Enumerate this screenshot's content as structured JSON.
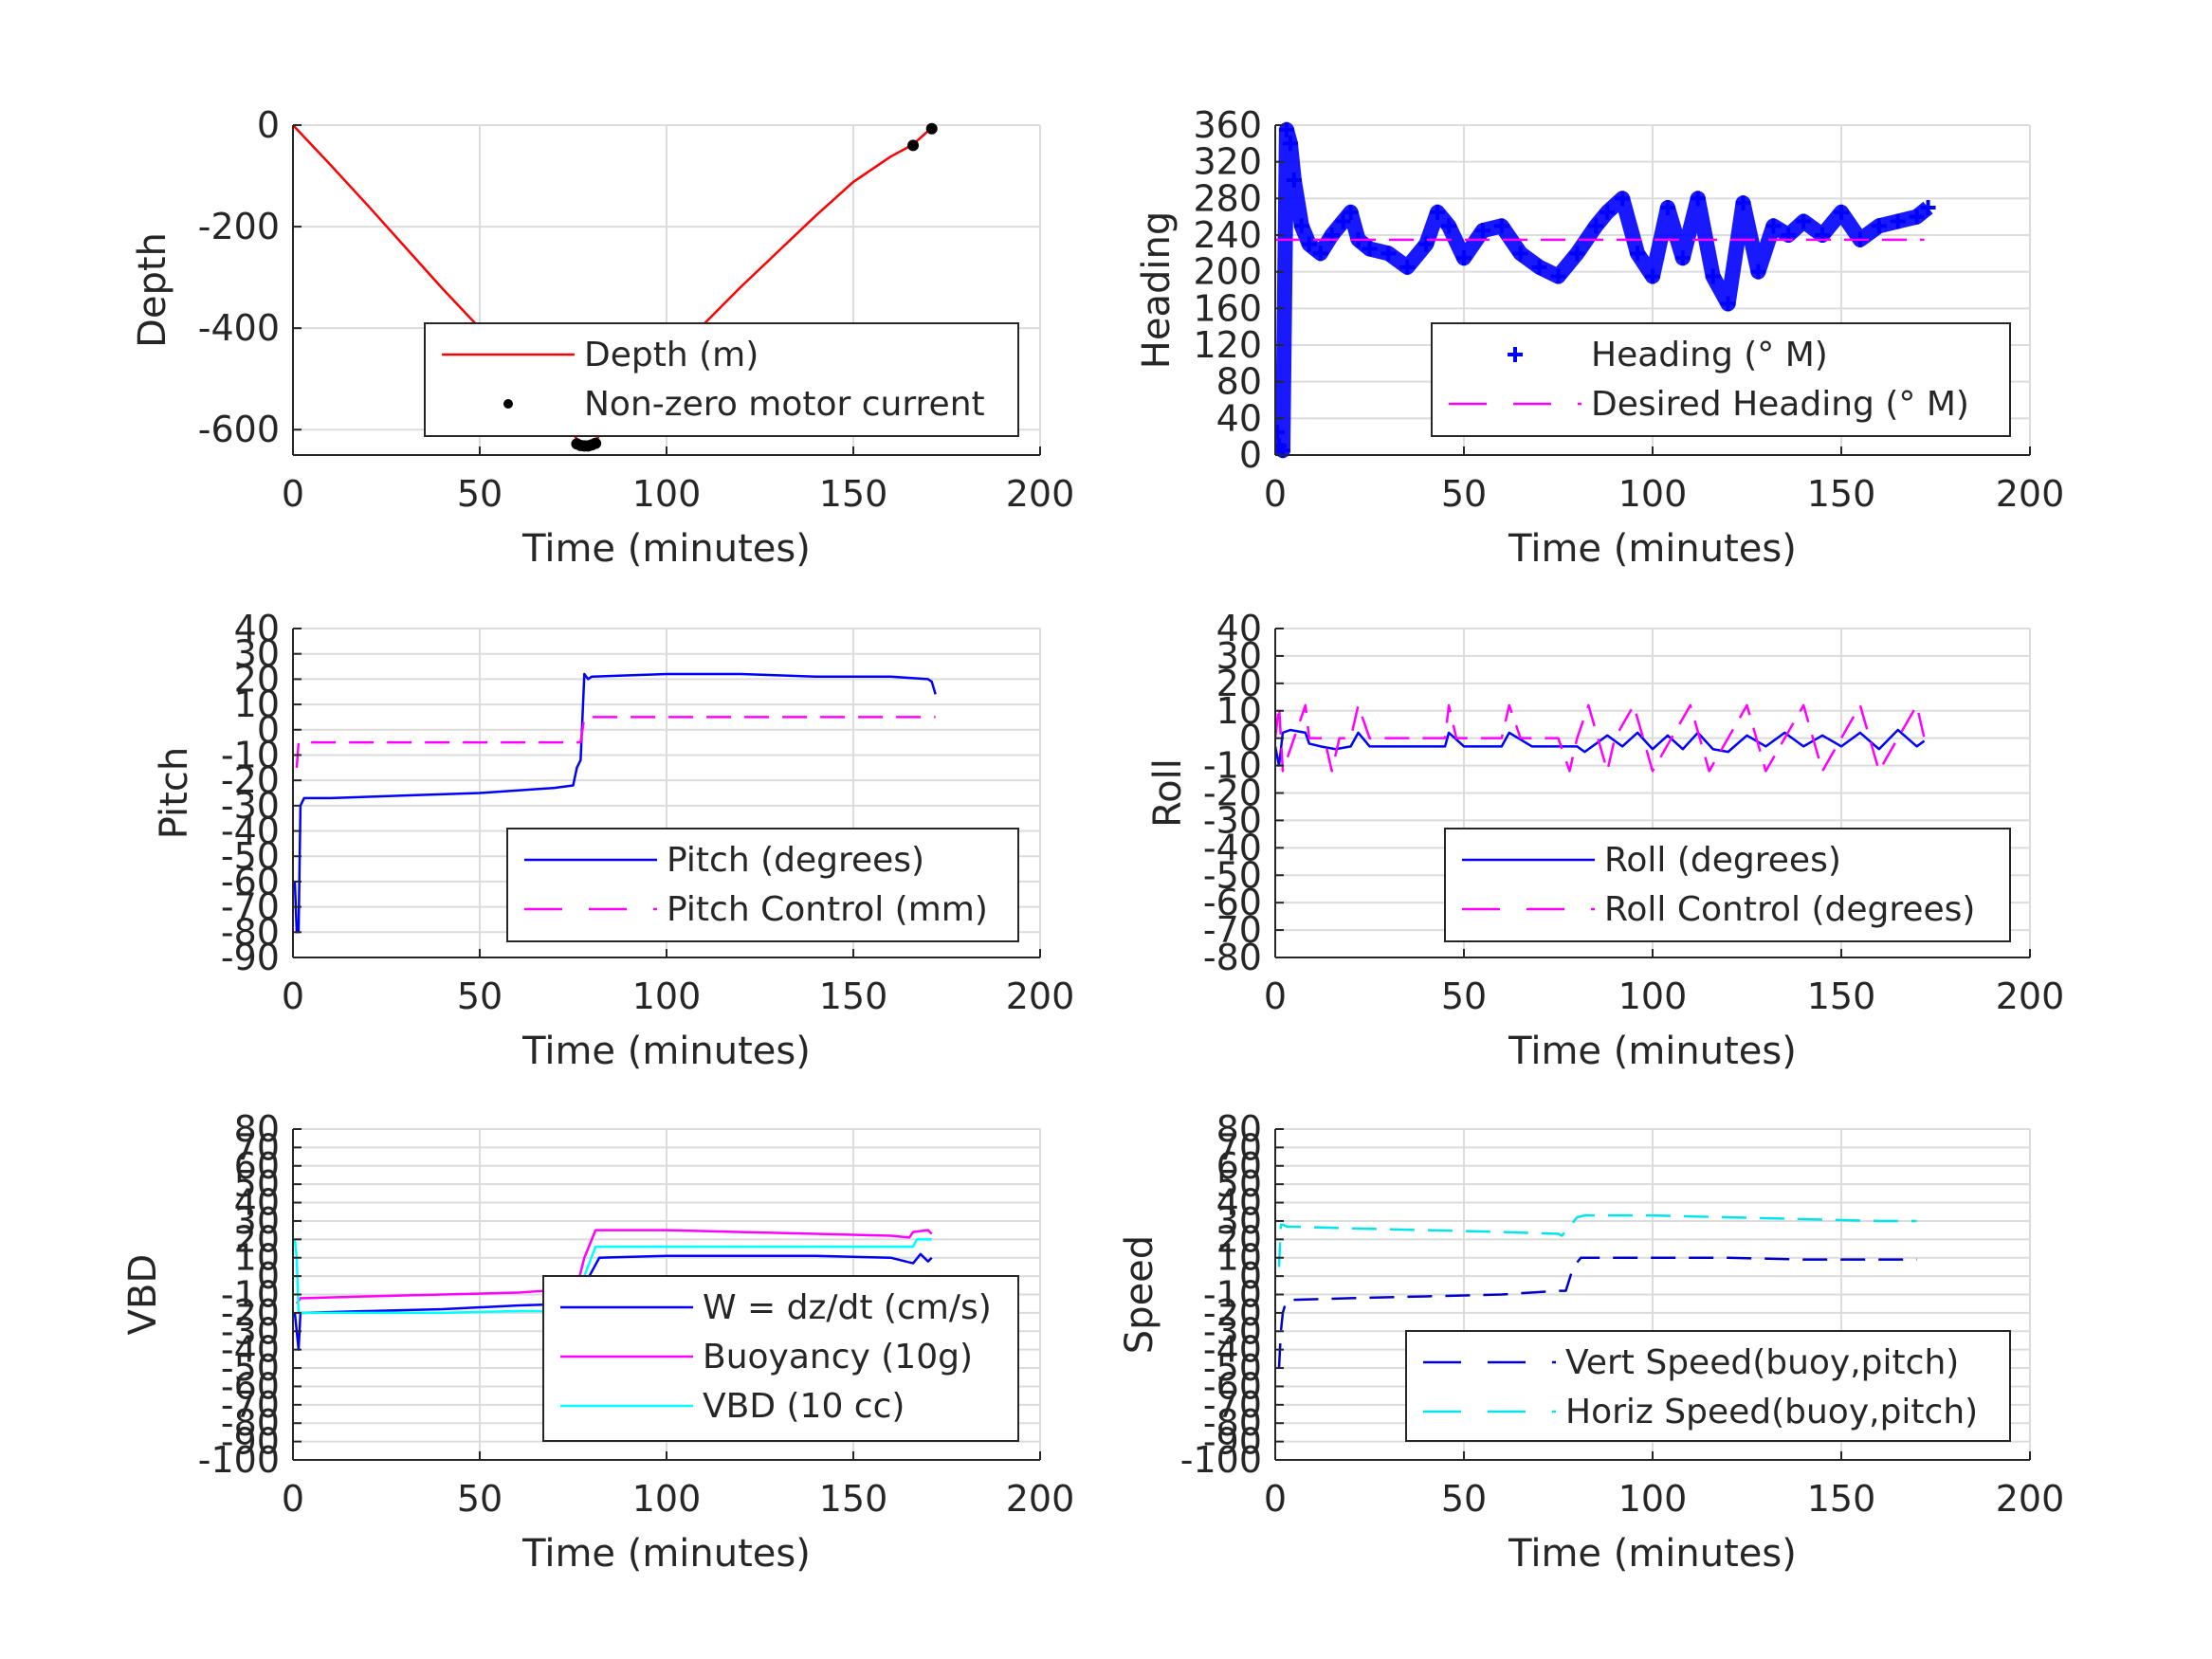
{
  "chart_data": [
    {
      "type": "line",
      "xlabel": "Time (minutes)",
      "ylabel": "Depth",
      "xlim": [
        0,
        200
      ],
      "ylim": [
        -650,
        0
      ],
      "xticks": [
        "0",
        "50",
        "100",
        "150",
        "200"
      ],
      "yticks": [
        0,
        -200,
        -400,
        -600
      ],
      "ytick_labels": [
        "0",
        "-200",
        "-400",
        "-600"
      ],
      "grid": true,
      "legend_position": "lower-right",
      "series": [
        {
          "name": "Depth (m)",
          "color": "#ff0000",
          "style": "solid",
          "x": [
            0,
            10,
            20,
            30,
            40,
            50,
            60,
            70,
            77,
            78,
            80,
            90,
            100,
            110,
            120,
            130,
            140,
            150,
            160,
            166,
            171
          ],
          "y": [
            0,
            -78,
            -158,
            -240,
            -322,
            -400,
            -478,
            -560,
            -628,
            -632,
            -628,
            -548,
            -470,
            -392,
            -318,
            -248,
            -178,
            -112,
            -62,
            -38,
            -5
          ]
        },
        {
          "name": "Non-zero motor current",
          "color": "#000000",
          "style": "dot",
          "x": [
            76,
            77,
            78,
            79,
            80,
            81,
            166,
            171
          ],
          "y": [
            -628,
            -631,
            -632,
            -632,
            -630,
            -627,
            -40,
            -7
          ]
        }
      ]
    },
    {
      "type": "scatter",
      "xlabel": "Time (minutes)",
      "ylabel": "Heading",
      "xlim": [
        0,
        200
      ],
      "ylim": [
        0,
        360
      ],
      "xticks": [
        "0",
        "50",
        "100",
        "150",
        "200"
      ],
      "yticks": [
        0,
        40,
        80,
        120,
        160,
        200,
        240,
        280,
        320,
        360
      ],
      "ytick_labels": [
        "0",
        "40",
        "80",
        "120",
        "160",
        "200",
        "240",
        "280",
        "320",
        "360"
      ],
      "grid": true,
      "legend_position": "lower-right",
      "series": [
        {
          "name": "Heading (° M)",
          "color": "#0000ff",
          "style": "plus",
          "x": [
            0.5,
            1,
            2,
            3,
            4,
            5,
            7,
            9,
            12,
            15,
            18,
            20,
            22,
            25,
            30,
            35,
            40,
            43,
            46,
            50,
            55,
            60,
            65,
            70,
            75,
            80,
            85,
            88,
            92,
            96,
            100,
            104,
            108,
            112,
            116,
            120,
            124,
            128,
            132,
            136,
            140,
            145,
            150,
            155,
            160,
            165,
            170,
            173
          ],
          "y": [
            25,
            10,
            5,
            355,
            340,
            300,
            250,
            230,
            220,
            240,
            255,
            265,
            235,
            225,
            220,
            205,
            230,
            265,
            250,
            215,
            245,
            250,
            220,
            205,
            195,
            220,
            250,
            265,
            280,
            220,
            195,
            270,
            215,
            280,
            195,
            165,
            275,
            200,
            250,
            240,
            255,
            240,
            265,
            235,
            250,
            255,
            260,
            270
          ]
        },
        {
          "name": "Desired Heading (° M)",
          "color": "#ff00ff",
          "style": "dashed",
          "x": [
            0,
            172
          ],
          "y": [
            235,
            235
          ]
        }
      ]
    },
    {
      "type": "line",
      "xlabel": "Time (minutes)",
      "ylabel": "Pitch",
      "xlim": [
        0,
        200
      ],
      "ylim": [
        -90,
        40
      ],
      "xticks": [
        "0",
        "50",
        "100",
        "150",
        "200"
      ],
      "yticks": [
        40,
        30,
        20,
        10,
        0,
        -10,
        -20,
        -30,
        -40,
        -50,
        -60,
        -70,
        -80,
        -90
      ],
      "ytick_labels": [
        "40",
        "30",
        "20",
        "10",
        "0",
        "-10",
        "-20",
        "-30",
        "-40",
        "-50",
        "-60",
        "-70",
        "-80",
        "-90"
      ],
      "grid": true,
      "legend_position": "lower-right",
      "series": [
        {
          "name": "Pitch (degrees)",
          "color": "#0000ff",
          "style": "solid",
          "x": [
            0.5,
            1,
            1.5,
            2,
            3,
            10,
            30,
            50,
            70,
            75,
            76,
            77,
            78,
            79,
            80,
            100,
            120,
            140,
            160,
            170,
            171,
            172
          ],
          "y": [
            -60,
            -80,
            -80,
            -30,
            -27,
            -27,
            -26,
            -25,
            -23,
            -22,
            -15,
            -12,
            22,
            20,
            21,
            22,
            22,
            21,
            21,
            20,
            19,
            14
          ]
        },
        {
          "name": "Pitch Control (mm)",
          "color": "#ff00ff",
          "style": "dashed",
          "x": [
            1,
            1.5,
            2,
            30,
            77,
            78,
            79,
            120,
            172
          ],
          "y": [
            -15,
            -5,
            -5,
            -5,
            -5,
            5,
            5,
            5,
            5
          ]
        }
      ]
    },
    {
      "type": "line",
      "xlabel": "Time (minutes)",
      "ylabel": "Roll",
      "xlim": [
        0,
        200
      ],
      "ylim": [
        -80,
        40
      ],
      "xticks": [
        "0",
        "50",
        "100",
        "150",
        "200"
      ],
      "yticks": [
        40,
        30,
        20,
        10,
        0,
        -10,
        -20,
        -30,
        -40,
        -50,
        -60,
        -70,
        -80
      ],
      "ytick_labels": [
        "40",
        "30",
        "20",
        "10",
        "0",
        "-10",
        "-20",
        "-30",
        "-40",
        "-50",
        "-60",
        "-70",
        "-80"
      ],
      "grid": true,
      "legend_position": "lower-right",
      "series": [
        {
          "name": "Roll (degrees)",
          "color": "#0000ff",
          "style": "solid",
          "x": [
            0,
            1,
            2,
            4,
            8,
            9,
            12,
            16,
            20,
            22,
            25,
            40,
            45,
            46,
            50,
            55,
            60,
            62,
            68,
            75,
            80,
            82,
            85,
            88,
            92,
            96,
            100,
            104,
            108,
            112,
            116,
            120,
            125,
            130,
            135,
            140,
            145,
            150,
            155,
            160,
            165,
            170,
            172
          ],
          "y": [
            -3,
            -10,
            2,
            3,
            2,
            -2,
            -3,
            -4,
            -3,
            2,
            -3,
            -3,
            -3,
            2,
            -3,
            -3,
            -3,
            2,
            -3,
            -3,
            -3,
            -5,
            -2,
            1,
            -3,
            2,
            -4,
            1,
            -4,
            2,
            -4,
            -5,
            1,
            -3,
            2,
            -3,
            1,
            -3,
            2,
            -4,
            3,
            -3,
            -1
          ]
        },
        {
          "name": "Roll Control (degrees)",
          "color": "#ff00ff",
          "style": "dashed",
          "x": [
            0,
            1,
            1.5,
            2,
            5,
            8,
            9,
            10,
            13,
            15,
            17,
            18,
            20,
            22,
            25,
            40,
            45,
            46,
            48,
            55,
            60,
            62,
            65,
            70,
            75,
            78,
            80,
            83,
            88,
            90,
            95,
            100,
            105,
            110,
            115,
            120,
            125,
            130,
            135,
            140,
            145,
            150,
            155,
            160,
            165,
            170,
            172
          ],
          "y": [
            0,
            12,
            0,
            -12,
            0,
            12,
            0,
            0,
            0,
            -12,
            0,
            0,
            0,
            12,
            0,
            0,
            0,
            12,
            0,
            0,
            0,
            12,
            0,
            0,
            0,
            -12,
            0,
            12,
            -12,
            0,
            12,
            -12,
            0,
            12,
            -12,
            0,
            12,
            -12,
            0,
            12,
            -12,
            0,
            12,
            -12,
            0,
            12,
            0
          ]
        }
      ]
    },
    {
      "type": "line",
      "xlabel": "Time (minutes)",
      "ylabel": "VBD",
      "xlim": [
        0,
        200
      ],
      "ylim": [
        -100,
        80
      ],
      "xticks": [
        "0",
        "50",
        "100",
        "150",
        "200"
      ],
      "yticks": [
        80,
        70,
        60,
        50,
        40,
        30,
        20,
        10,
        0,
        -10,
        -20,
        -30,
        -40,
        -50,
        -60,
        -70,
        -80,
        -90,
        -100
      ],
      "ytick_labels": [
        "80",
        "70",
        "60",
        "50",
        "40",
        "30",
        "20",
        "10",
        "0",
        "-10",
        "-20",
        "-30",
        "-40",
        "-50",
        "-60",
        "-70",
        "-80",
        "-90",
        "-100"
      ],
      "grid": true,
      "legend_position": "lower-right",
      "series": [
        {
          "name": "W = dz/dt (cm/s)",
          "color": "#0000ff",
          "style": "solid",
          "x": [
            0.5,
            1,
            1.5,
            2,
            3,
            20,
            40,
            60,
            75,
            76,
            78,
            82,
            100,
            120,
            140,
            160,
            166,
            168,
            170,
            171
          ],
          "y": [
            -20,
            -30,
            -40,
            -20,
            -20,
            -19,
            -18,
            -16,
            -15,
            -14,
            -5,
            10,
            11,
            11,
            11,
            10,
            7,
            12,
            8,
            10
          ]
        },
        {
          "name": "Buoyancy (10g)",
          "color": "#ff00ff",
          "style": "solid",
          "x": [
            1,
            2,
            3,
            20,
            40,
            60,
            75,
            76,
            78,
            81,
            100,
            120,
            140,
            160,
            165,
            166,
            170,
            171
          ],
          "y": [
            -15,
            -12,
            -12,
            -11,
            -10,
            -9,
            -7,
            -6,
            10,
            25,
            25,
            24,
            23,
            22,
            21,
            24,
            25,
            23
          ]
        },
        {
          "name": "VBD (10 cc)",
          "color": "#00ffff",
          "style": "solid",
          "x": [
            0.5,
            1,
            1.5,
            2,
            3,
            20,
            40,
            60,
            75,
            76,
            78,
            81,
            100,
            120,
            140,
            160,
            166,
            167,
            171
          ],
          "y": [
            20,
            10,
            -20,
            -20,
            -20,
            -20,
            -20,
            -19,
            -19,
            -18,
            0,
            16,
            16,
            16,
            16,
            16,
            16,
            20,
            20
          ]
        }
      ]
    },
    {
      "type": "line",
      "xlabel": "Time (minutes)",
      "ylabel": "Speed",
      "xlim": [
        0,
        200
      ],
      "ylim": [
        -100,
        80
      ],
      "xticks": [
        "0",
        "50",
        "100",
        "150",
        "200"
      ],
      "yticks": [
        80,
        70,
        60,
        50,
        40,
        30,
        20,
        10,
        0,
        -10,
        -20,
        -30,
        -40,
        -50,
        -60,
        -70,
        -80,
        -90,
        -100
      ],
      "ytick_labels": [
        "80",
        "70",
        "60",
        "50",
        "40",
        "30",
        "20",
        "10",
        "0",
        "-10",
        "-20",
        "-30",
        "-40",
        "-50",
        "-60",
        "-70",
        "-80",
        "-90",
        "-100"
      ],
      "grid": true,
      "legend_position": "lower-right",
      "series": [
        {
          "name": "Vert Speed(buoy,pitch)",
          "color": "#0000cd",
          "style": "dashed",
          "x": [
            1,
            1.5,
            2,
            3,
            20,
            40,
            60,
            75,
            76,
            77,
            79,
            81,
            100,
            120,
            140,
            160,
            170
          ],
          "y": [
            -50,
            -30,
            -20,
            -13,
            -12,
            -11,
            -10,
            -8,
            -8,
            -8,
            5,
            10,
            10,
            10,
            9,
            9,
            9
          ]
        },
        {
          "name": "Horiz Speed(buoy,pitch)",
          "color": "#00e5ee",
          "style": "dashed",
          "x": [
            1,
            1.5,
            2,
            3,
            20,
            40,
            60,
            75,
            76,
            78,
            80,
            82,
            100,
            120,
            140,
            160,
            170
          ],
          "y": [
            5,
            28,
            28,
            27,
            26,
            25,
            24,
            23,
            22,
            27,
            32,
            33,
            33,
            32,
            31,
            30,
            30
          ]
        }
      ]
    }
  ]
}
